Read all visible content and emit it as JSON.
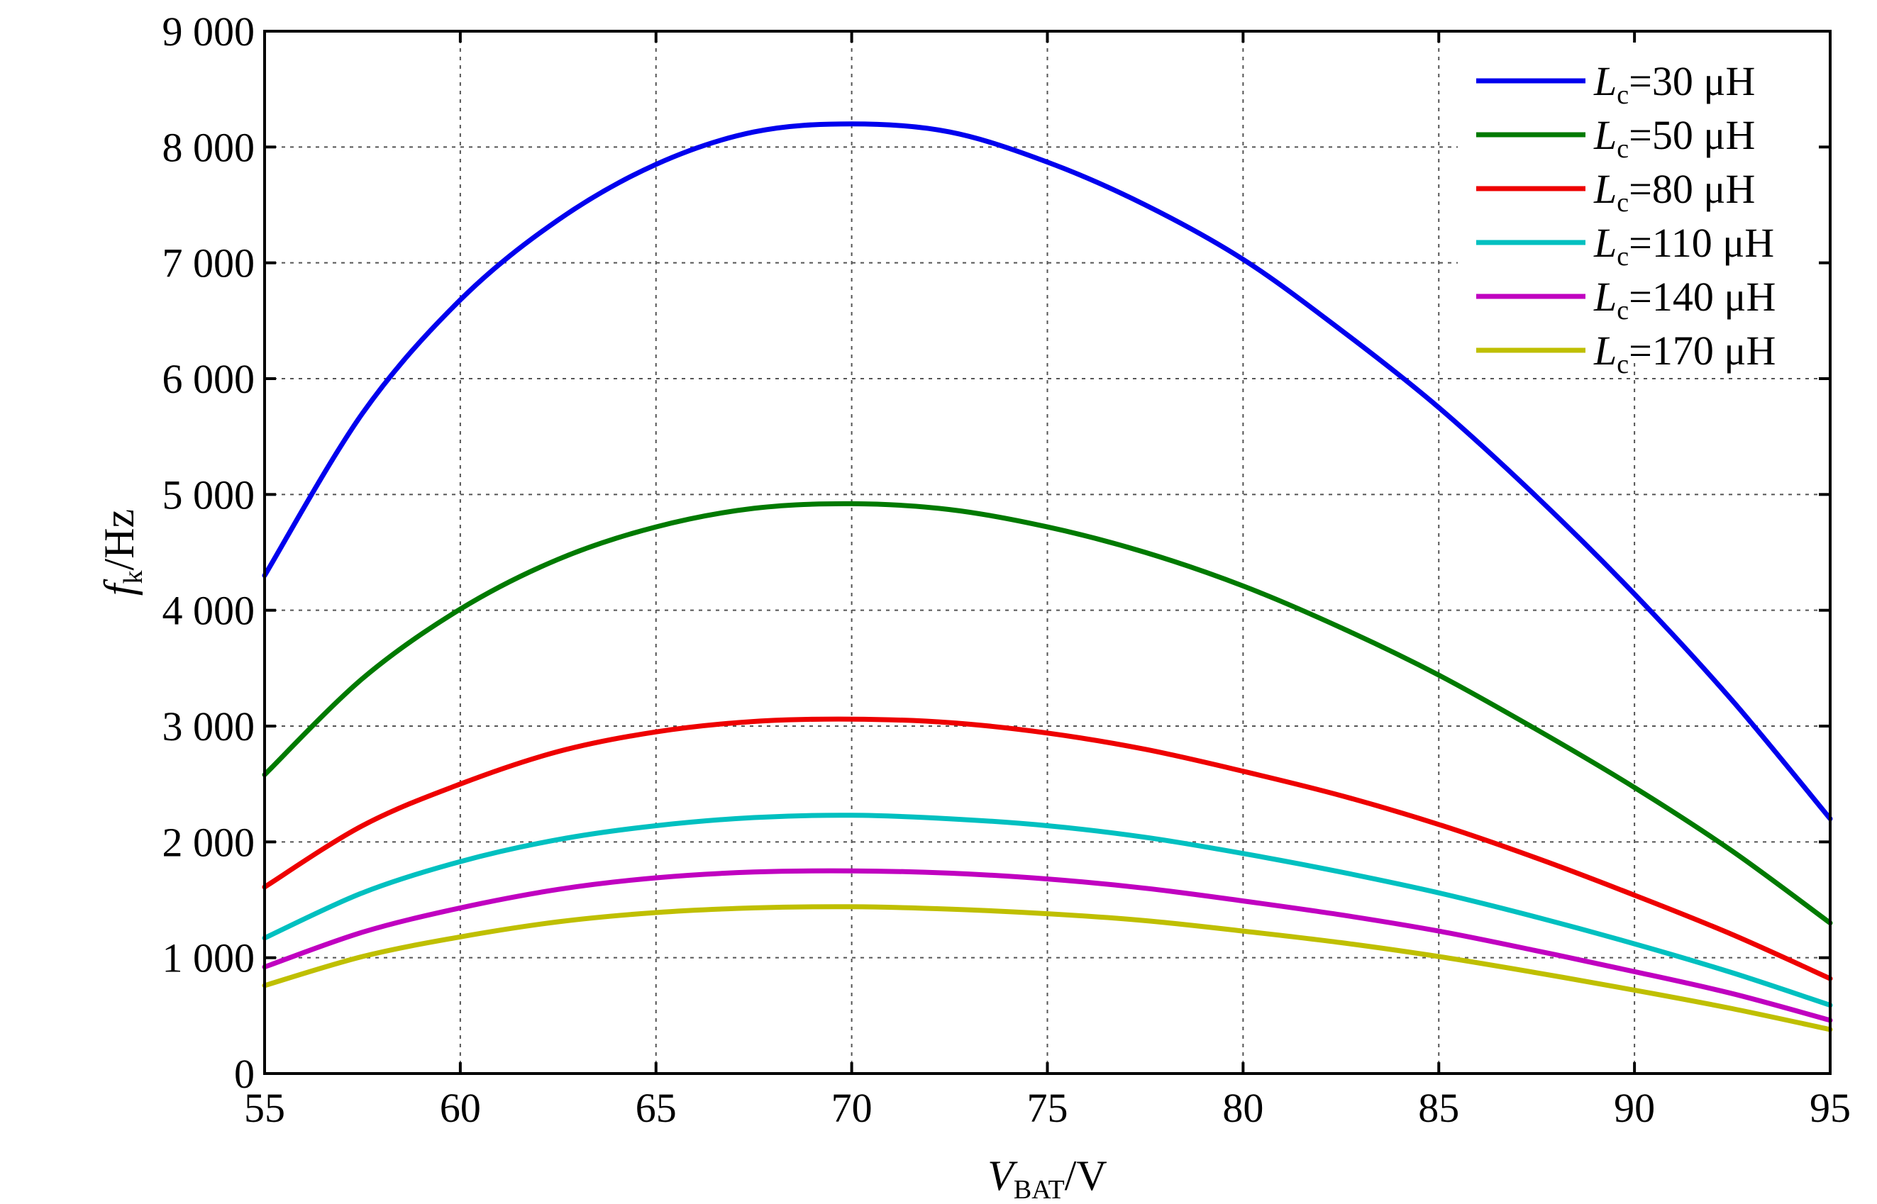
{
  "chart_data": {
    "type": "line",
    "title": "",
    "xlabel": {
      "var": "V",
      "sub": "BAT",
      "unit": "/V"
    },
    "ylabel": {
      "var": "f",
      "sub": "k",
      "unit": "/Hz"
    },
    "xlim": [
      55,
      95
    ],
    "ylim": [
      0,
      9000
    ],
    "x_ticks": [
      55,
      60,
      65,
      70,
      75,
      80,
      85,
      90,
      95
    ],
    "x_tick_labels": [
      "55",
      "60",
      "65",
      "70",
      "75",
      "80",
      "85",
      "90",
      "95"
    ],
    "y_ticks": [
      0,
      1000,
      2000,
      3000,
      4000,
      5000,
      6000,
      7000,
      8000,
      9000
    ],
    "y_tick_labels": [
      "0",
      "1 000",
      "2 000",
      "3 000",
      "4 000",
      "5 000",
      "6 000",
      "7 000",
      "8 000",
      "9 000"
    ],
    "grid": true,
    "legend_position": "top-right",
    "x": [
      55,
      57.5,
      60,
      62.5,
      65,
      67.5,
      70,
      72.5,
      75,
      77.5,
      80,
      82.5,
      85,
      87.5,
      90,
      92.5,
      95
    ],
    "series": [
      {
        "name_var": "L",
        "name_sub": "c",
        "name_value": "=30 μH",
        "color": "#0000ee",
        "values": [
          4300,
          5700,
          6680,
          7370,
          7850,
          8130,
          8200,
          8130,
          7870,
          7500,
          7030,
          6420,
          5750,
          4980,
          4140,
          3220,
          2200
        ]
      },
      {
        "name_var": "L",
        "name_sub": "c",
        "name_value": "=50 μH",
        "color": "#007a00",
        "values": [
          2580,
          3410,
          4010,
          4440,
          4720,
          4880,
          4920,
          4870,
          4720,
          4500,
          4210,
          3850,
          3440,
          2970,
          2470,
          1920,
          1300
        ]
      },
      {
        "name_var": "L",
        "name_sub": "c",
        "name_value": "=80 μH",
        "color": "#ee0000",
        "values": [
          1610,
          2140,
          2500,
          2780,
          2950,
          3040,
          3060,
          3030,
          2940,
          2800,
          2610,
          2400,
          2150,
          1860,
          1540,
          1200,
          820
        ]
      },
      {
        "name_var": "L",
        "name_sub": "c",
        "name_value": "=110 μH",
        "color": "#00c0c0",
        "values": [
          1170,
          1560,
          1830,
          2020,
          2140,
          2210,
          2230,
          2200,
          2140,
          2040,
          1900,
          1740,
          1560,
          1350,
          1120,
          870,
          590
        ]
      },
      {
        "name_var": "L",
        "name_sub": "c",
        "name_value": "=140 μH",
        "color": "#c000c0",
        "values": [
          920,
          1220,
          1430,
          1590,
          1690,
          1740,
          1750,
          1730,
          1680,
          1600,
          1490,
          1370,
          1230,
          1060,
          880,
          690,
          460
        ]
      },
      {
        "name_var": "L",
        "name_sub": "c",
        "name_value": "=170 μH",
        "color": "#bfbf00",
        "values": [
          760,
          1010,
          1180,
          1310,
          1390,
          1430,
          1440,
          1420,
          1380,
          1320,
          1230,
          1130,
          1010,
          870,
          720,
          560,
          380
        ]
      }
    ]
  }
}
